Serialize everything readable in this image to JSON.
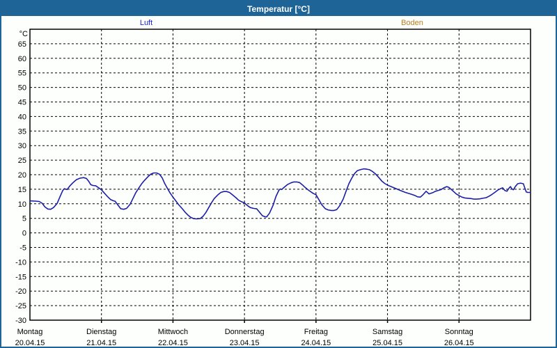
{
  "window": {
    "title": "Temperatur [°C]"
  },
  "legend": [
    {
      "label": "Luft",
      "color": "#1a1ae6"
    },
    {
      "label": "Boden",
      "color": "#bd7d21"
    }
  ],
  "chart_data": {
    "type": "line",
    "title": "Temperatur [°C]",
    "y_unit": "°C",
    "ylim": [
      -30,
      70
    ],
    "y_tick_step": 5,
    "grid": "dashed",
    "legend_position": "top",
    "y_ticks": [
      65,
      60,
      55,
      50,
      45,
      40,
      35,
      30,
      25,
      20,
      15,
      10,
      5,
      0,
      -5,
      -10,
      -15,
      -20,
      -25,
      -30
    ],
    "x_days": [
      {
        "name": "Montag",
        "date": "20.04.15"
      },
      {
        "name": "Dienstag",
        "date": "21.04.15"
      },
      {
        "name": "Mittwoch",
        "date": "22.04.15"
      },
      {
        "name": "Donnerstag",
        "date": "23.04.15"
      },
      {
        "name": "Freitag",
        "date": "24.04.15"
      },
      {
        "name": "Samstag",
        "date": "25.04.15"
      },
      {
        "name": "Sonntag",
        "date": "26.04.15"
      }
    ],
    "series": [
      {
        "name": "Luft",
        "color": "#1c1ca8",
        "x_unit": "days_since_monday",
        "points": [
          [
            0.0,
            11.0
          ],
          [
            0.08,
            10.9
          ],
          [
            0.13,
            10.8
          ],
          [
            0.17,
            10.2
          ],
          [
            0.21,
            8.9
          ],
          [
            0.25,
            8.2
          ],
          [
            0.29,
            8.1
          ],
          [
            0.33,
            8.7
          ],
          [
            0.38,
            10.1
          ],
          [
            0.42,
            12.4
          ],
          [
            0.46,
            14.6
          ],
          [
            0.48,
            15.2
          ],
          [
            0.52,
            14.9
          ],
          [
            0.56,
            16.2
          ],
          [
            0.6,
            17.2
          ],
          [
            0.65,
            18.3
          ],
          [
            0.7,
            18.8
          ],
          [
            0.75,
            19.0
          ],
          [
            0.79,
            18.7
          ],
          [
            0.82,
            17.8
          ],
          [
            0.85,
            16.6
          ],
          [
            0.88,
            16.3
          ],
          [
            0.92,
            16.2
          ],
          [
            0.96,
            15.5
          ],
          [
            1.0,
            14.8
          ],
          [
            1.04,
            13.7
          ],
          [
            1.08,
            12.6
          ],
          [
            1.13,
            11.4
          ],
          [
            1.17,
            11.0
          ],
          [
            1.19,
            10.9
          ],
          [
            1.23,
            9.6
          ],
          [
            1.27,
            8.3
          ],
          [
            1.31,
            8.1
          ],
          [
            1.35,
            8.4
          ],
          [
            1.4,
            9.8
          ],
          [
            1.44,
            11.8
          ],
          [
            1.48,
            13.8
          ],
          [
            1.52,
            15.3
          ],
          [
            1.56,
            16.8
          ],
          [
            1.6,
            18.0
          ],
          [
            1.65,
            19.3
          ],
          [
            1.69,
            20.2
          ],
          [
            1.73,
            20.6
          ],
          [
            1.77,
            20.6
          ],
          [
            1.81,
            20.2
          ],
          [
            1.85,
            18.9
          ],
          [
            1.88,
            17.2
          ],
          [
            1.92,
            15.4
          ],
          [
            1.96,
            13.7
          ],
          [
            2.0,
            12.3
          ],
          [
            2.04,
            11.0
          ],
          [
            2.08,
            9.7
          ],
          [
            2.13,
            8.3
          ],
          [
            2.17,
            7.1
          ],
          [
            2.21,
            6.1
          ],
          [
            2.25,
            5.3
          ],
          [
            2.29,
            4.9
          ],
          [
            2.33,
            4.8
          ],
          [
            2.38,
            4.9
          ],
          [
            2.42,
            5.7
          ],
          [
            2.46,
            7.0
          ],
          [
            2.5,
            8.7
          ],
          [
            2.54,
            10.4
          ],
          [
            2.58,
            11.9
          ],
          [
            2.63,
            13.1
          ],
          [
            2.67,
            13.9
          ],
          [
            2.71,
            14.2
          ],
          [
            2.75,
            14.2
          ],
          [
            2.79,
            13.9
          ],
          [
            2.83,
            13.1
          ],
          [
            2.88,
            12.1
          ],
          [
            2.92,
            11.2
          ],
          [
            2.96,
            10.7
          ],
          [
            3.0,
            10.3
          ],
          [
            3.04,
            9.4
          ],
          [
            3.08,
            8.7
          ],
          [
            3.13,
            8.4
          ],
          [
            3.17,
            8.3
          ],
          [
            3.21,
            7.1
          ],
          [
            3.25,
            5.9
          ],
          [
            3.29,
            5.5
          ],
          [
            3.31,
            5.5
          ],
          [
            3.35,
            6.8
          ],
          [
            3.4,
            9.5
          ],
          [
            3.44,
            12.5
          ],
          [
            3.48,
            14.6
          ],
          [
            3.5,
            15.1
          ],
          [
            3.52,
            14.9
          ],
          [
            3.56,
            15.8
          ],
          [
            3.6,
            16.6
          ],
          [
            3.65,
            17.2
          ],
          [
            3.69,
            17.5
          ],
          [
            3.73,
            17.5
          ],
          [
            3.77,
            17.3
          ],
          [
            3.81,
            16.5
          ],
          [
            3.85,
            15.6
          ],
          [
            3.9,
            14.6
          ],
          [
            3.96,
            13.6
          ],
          [
            4.0,
            13.1
          ],
          [
            4.04,
            11.4
          ],
          [
            4.08,
            9.7
          ],
          [
            4.13,
            8.3
          ],
          [
            4.17,
            7.9
          ],
          [
            4.21,
            7.7
          ],
          [
            4.25,
            7.7
          ],
          [
            4.29,
            8.0
          ],
          [
            4.33,
            9.3
          ],
          [
            4.38,
            11.6
          ],
          [
            4.42,
            14.3
          ],
          [
            4.46,
            16.9
          ],
          [
            4.5,
            18.8
          ],
          [
            4.54,
            20.4
          ],
          [
            4.58,
            21.4
          ],
          [
            4.63,
            21.8
          ],
          [
            4.67,
            22.0
          ],
          [
            4.71,
            21.9
          ],
          [
            4.75,
            21.7
          ],
          [
            4.79,
            21.1
          ],
          [
            4.83,
            20.3
          ],
          [
            4.88,
            19.0
          ],
          [
            4.92,
            17.8
          ],
          [
            4.96,
            17.0
          ],
          [
            5.0,
            16.4
          ],
          [
            5.08,
            15.6
          ],
          [
            5.17,
            14.7
          ],
          [
            5.25,
            13.9
          ],
          [
            5.33,
            13.3
          ],
          [
            5.38,
            12.9
          ],
          [
            5.42,
            12.4
          ],
          [
            5.46,
            12.3
          ],
          [
            5.5,
            13.2
          ],
          [
            5.54,
            14.3
          ],
          [
            5.58,
            13.4
          ],
          [
            5.63,
            13.8
          ],
          [
            5.67,
            14.3
          ],
          [
            5.71,
            14.6
          ],
          [
            5.75,
            14.9
          ],
          [
            5.79,
            15.5
          ],
          [
            5.83,
            15.9
          ],
          [
            5.86,
            15.6
          ],
          [
            5.92,
            14.3
          ],
          [
            5.96,
            13.4
          ],
          [
            6.0,
            12.8
          ],
          [
            6.04,
            12.3
          ],
          [
            6.08,
            12.0
          ],
          [
            6.13,
            11.9
          ],
          [
            6.17,
            11.8
          ],
          [
            6.21,
            11.6
          ],
          [
            6.25,
            11.6
          ],
          [
            6.29,
            11.7
          ],
          [
            6.33,
            11.9
          ],
          [
            6.38,
            12.1
          ],
          [
            6.42,
            12.6
          ],
          [
            6.46,
            13.2
          ],
          [
            6.5,
            13.9
          ],
          [
            6.54,
            14.7
          ],
          [
            6.58,
            15.2
          ],
          [
            6.61,
            15.5
          ],
          [
            6.64,
            14.6
          ],
          [
            6.67,
            14.3
          ],
          [
            6.7,
            15.4
          ],
          [
            6.72,
            15.9
          ],
          [
            6.74,
            15.1
          ],
          [
            6.76,
            14.8
          ],
          [
            6.79,
            16.0
          ],
          [
            6.82,
            16.9
          ],
          [
            6.86,
            17.1
          ],
          [
            6.9,
            16.9
          ],
          [
            6.92,
            15.4
          ],
          [
            6.94,
            14.1
          ],
          [
            6.96,
            13.9
          ],
          [
            7.0,
            13.9
          ]
        ]
      },
      {
        "name": "Boden",
        "color": "#bd7d21",
        "x_unit": "days_since_monday",
        "points": []
      }
    ]
  }
}
